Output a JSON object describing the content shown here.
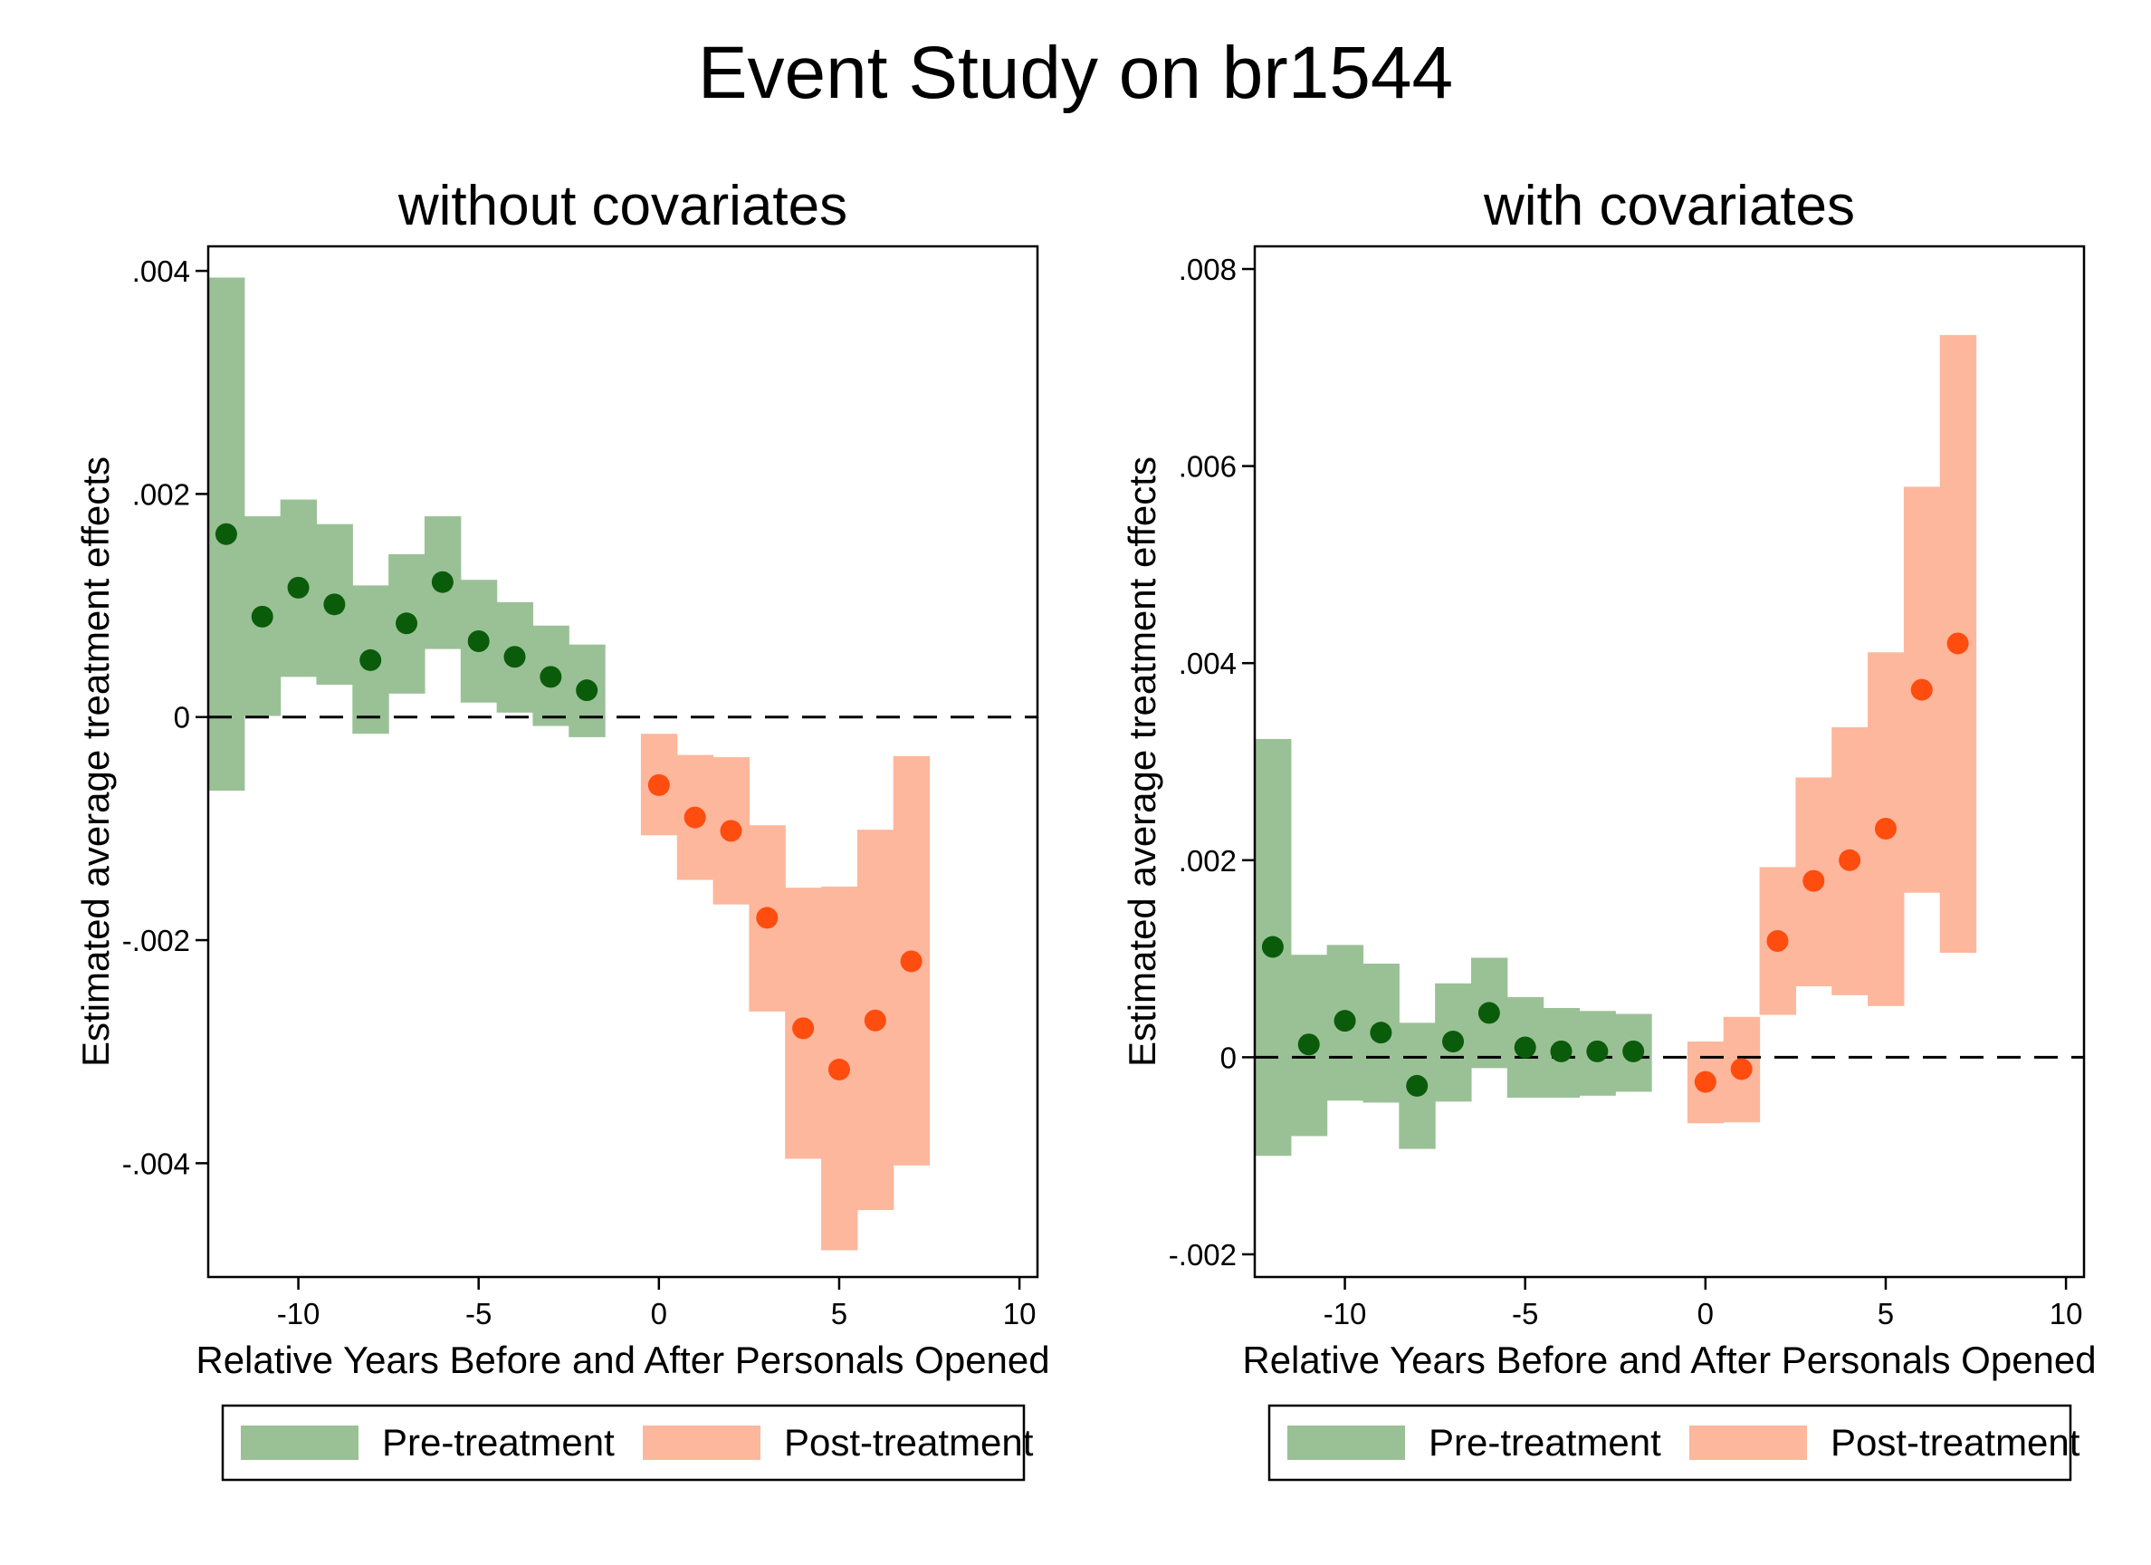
{
  "title": "Event Study on br1544",
  "colors": {
    "pre": "#9ac196",
    "post": "#fdb79c",
    "pre_point": "#0a5c0a",
    "post_point": "#ff4c0f",
    "zero_line": "#000000"
  },
  "chart_data": [
    {
      "type": "scatter",
      "title": "without covariates",
      "xlabel": "Relative Years Before and After Personals Opened",
      "ylabel": "Estimated average treatment effects",
      "xlim": [
        -12.5,
        10.5
      ],
      "ylim": [
        -0.00502,
        0.00422
      ],
      "xticks": [
        -10,
        -5,
        0,
        5,
        10
      ],
      "xtick_labels": [
        "-10",
        "-5",
        "0",
        "5",
        "10"
      ],
      "yticks": [
        0.004,
        0.002,
        0,
        -0.002,
        -0.004
      ],
      "ytick_labels": [
        ".004",
        ".002",
        "0",
        "-.002",
        "-.004"
      ],
      "zero_line": true,
      "grid": false,
      "legend": {
        "position": "bottom",
        "entries": [
          "Pre-treatment",
          "Post-treatment"
        ]
      },
      "series": [
        {
          "name": "Pre-treatment",
          "x": [
            -12,
            -11,
            -10,
            -9,
            -8,
            -7,
            -6,
            -5,
            -4,
            -3,
            -2
          ],
          "y": [
            0.00164,
            0.0009,
            0.00116,
            0.00101,
            0.00051,
            0.00084,
            0.00121,
            0.00068,
            0.00054,
            0.00036,
            0.00024
          ],
          "lower": [
            -0.00066,
            1e-05,
            0.00036,
            0.00029,
            -0.00015,
            0.00021,
            0.00061,
            0.00013,
            4e-05,
            -8e-05,
            -0.00018
          ],
          "upper": [
            0.00394,
            0.0018,
            0.00195,
            0.00173,
            0.00118,
            0.00146,
            0.0018,
            0.00123,
            0.00103,
            0.00082,
            0.00065
          ]
        },
        {
          "name": "Post-treatment",
          "x": [
            0,
            1,
            2,
            3,
            4,
            5,
            6,
            7
          ],
          "y": [
            -0.00061,
            -0.0009,
            -0.00102,
            -0.0018,
            -0.00279,
            -0.00316,
            -0.00272,
            -0.00219
          ],
          "lower": [
            -0.00106,
            -0.00146,
            -0.00168,
            -0.00264,
            -0.00396,
            -0.00478,
            -0.00442,
            -0.00402
          ],
          "upper": [
            -0.00015,
            -0.00034,
            -0.00036,
            -0.00097,
            -0.00153,
            -0.00152,
            -0.00101,
            -0.00035
          ]
        }
      ]
    },
    {
      "type": "scatter",
      "title": "with covariates",
      "xlabel": "Relative Years Before and After Personals Opened",
      "ylabel": "Estimated average treatment effects",
      "xlim": [
        -12.5,
        10.5
      ],
      "ylim": [
        -0.00223,
        0.00823
      ],
      "xticks": [
        -10,
        -5,
        0,
        5,
        10
      ],
      "xtick_labels": [
        "-10",
        "-5",
        "0",
        "5",
        "10"
      ],
      "yticks": [
        0.008,
        0.006,
        0.004,
        0.002,
        0,
        -0.002
      ],
      "ytick_labels": [
        ".008",
        ".006",
        ".004",
        ".002",
        "0",
        "-.002"
      ],
      "zero_line": true,
      "grid": false,
      "legend": {
        "position": "bottom",
        "entries": [
          "Pre-treatment",
          "Post-treatment"
        ]
      },
      "series": [
        {
          "name": "Pre-treatment",
          "x": [
            -12,
            -11,
            -10,
            -9,
            -8,
            -7,
            -6,
            -5,
            -4,
            -3,
            -2
          ],
          "y": [
            0.00112,
            0.00013,
            0.00037,
            0.00025,
            -0.00029,
            0.00016,
            0.00045,
            0.0001,
            6e-05,
            6e-05,
            6e-05
          ],
          "lower": [
            -0.001,
            -0.0008,
            -0.00044,
            -0.00046,
            -0.00093,
            -0.00045,
            -0.00011,
            -0.00041,
            -0.00041,
            -0.00039,
            -0.00035
          ],
          "upper": [
            0.00323,
            0.00104,
            0.00114,
            0.00095,
            0.00035,
            0.00075,
            0.00101,
            0.00061,
            0.0005,
            0.00047,
            0.00044
          ]
        },
        {
          "name": "Post-treatment",
          "x": [
            0,
            1,
            2,
            3,
            4,
            5,
            6,
            7
          ],
          "y": [
            -0.00025,
            -0.00012,
            0.00118,
            0.00179,
            0.002,
            0.00232,
            0.00373,
            0.0042
          ],
          "lower": [
            -0.00067,
            -0.00066,
            0.00043,
            0.00072,
            0.00063,
            0.00052,
            0.00167,
            0.00106
          ],
          "upper": [
            0.00016,
            0.00041,
            0.00193,
            0.00284,
            0.00335,
            0.00411,
            0.00579,
            0.00733
          ]
        }
      ]
    }
  ]
}
